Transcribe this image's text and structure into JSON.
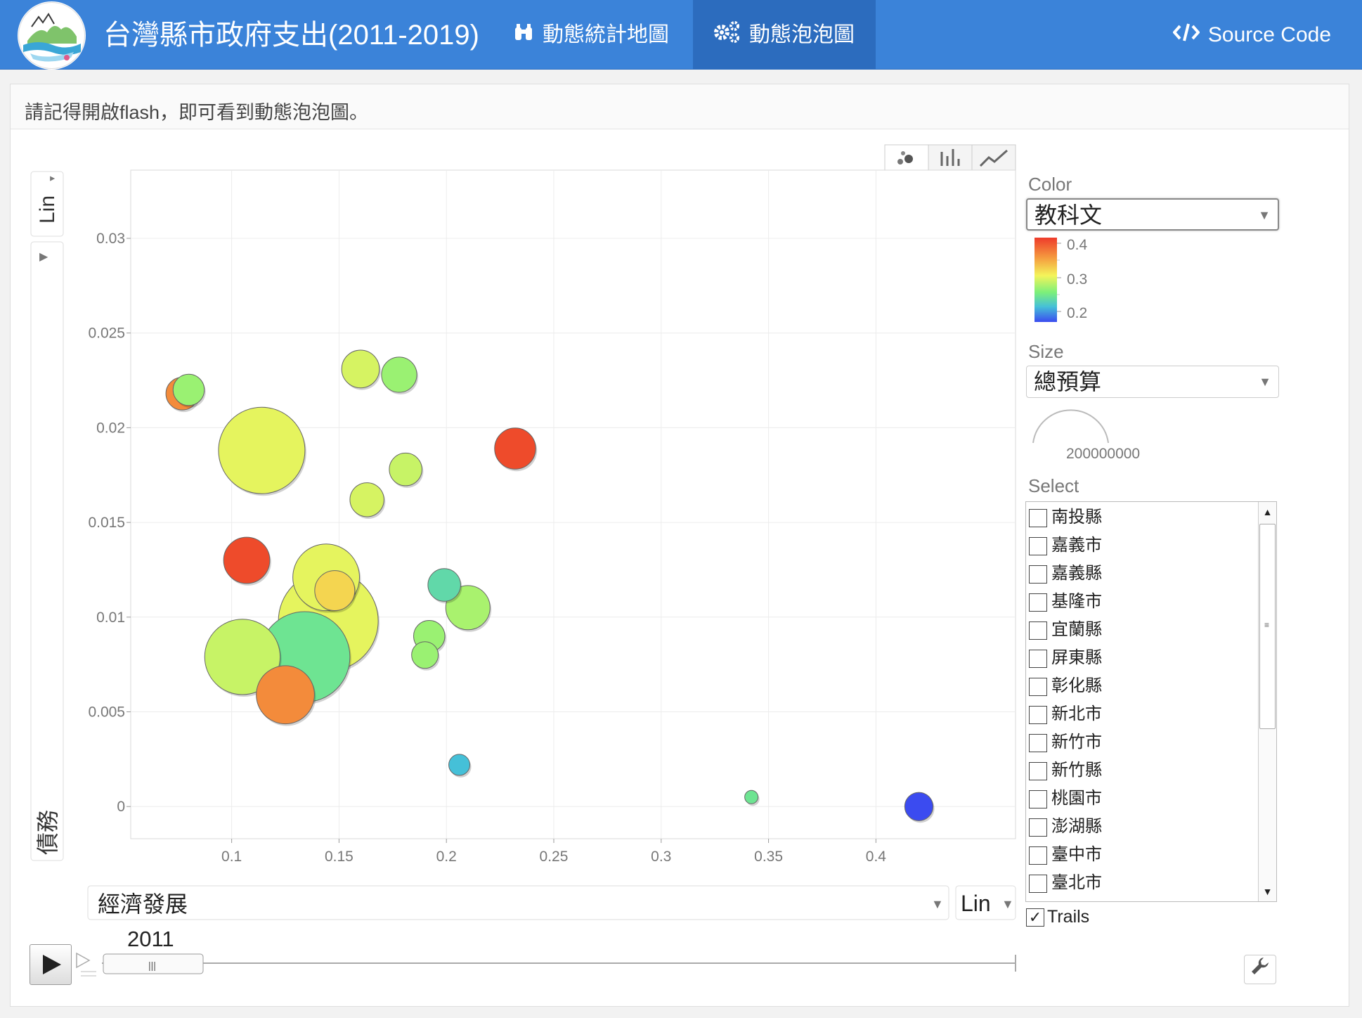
{
  "navbar": {
    "brand": "台灣縣市政府支出(2011-2019)",
    "nav_map": "動態統計地圖",
    "nav_bubble": "動態泡泡圖",
    "source_code": "Source Code",
    "colors": {
      "bar": "#3b83d9",
      "active": "#2c6cbe"
    },
    "icons": {
      "map": "binoculars-icon",
      "bubble": "gears-icon",
      "source": "code-icon"
    }
  },
  "notice": "請記得開啟flash，即可看到動態泡泡圖。",
  "controls": {
    "y_scale": "Lin",
    "x_scale": "Lin",
    "x_variable": "經濟發展",
    "color_label": "Color",
    "color_variable": "教科文",
    "color_legend_ticks": [
      "0.4",
      "0.3",
      "0.2"
    ],
    "size_label": "Size",
    "size_variable": "總預算",
    "size_legend_value": "200000000",
    "select_label": "Select",
    "select_items": [
      "南投縣",
      "嘉義市",
      "嘉義縣",
      "基隆市",
      "宜蘭縣",
      "屏東縣",
      "彰化縣",
      "新北市",
      "新竹市",
      "新竹縣",
      "桃園市",
      "澎湖縣",
      "臺中市",
      "臺北市"
    ],
    "trails_label": "Trails",
    "trails_checked": true,
    "year": "2011",
    "view_tabs": [
      "bubble-view",
      "bar-view",
      "line-view"
    ]
  },
  "chart_data": {
    "type": "scatter",
    "title": "",
    "xlabel": "經濟發展",
    "ylabel": "債務",
    "xlim": [
      0.053,
      0.465
    ],
    "ylim": [
      -0.0017,
      0.0336
    ],
    "xticks": [
      0.1,
      0.15,
      0.2,
      0.25,
      0.3,
      0.35,
      0.4
    ],
    "xtick_labels": [
      "0.1",
      "0.15",
      "0.2",
      "0.25",
      "0.3",
      "0.35",
      "0.4"
    ],
    "yticks": [
      0,
      0.005,
      0.01,
      0.015,
      0.02,
      0.025,
      0.03
    ],
    "ytick_labels": [
      "0",
      "0.005",
      "0.01",
      "0.015",
      "0.02",
      "0.025",
      "0.03"
    ],
    "grid": true,
    "year": 2011,
    "color_scale": {
      "min": 0.2,
      "max": 0.4,
      "stops": [
        "#3b4bf0",
        "#45c0d8",
        "#7cf07a",
        "#f4f45a",
        "#f5a040",
        "#ee4b2b"
      ]
    },
    "size_reference": 200000000,
    "points": [
      {
        "x": 0.077,
        "y": 0.0218,
        "size": 60000000,
        "color": 0.37
      },
      {
        "x": 0.08,
        "y": 0.022,
        "size": 55000000,
        "color": 0.29
      },
      {
        "x": 0.16,
        "y": 0.0231,
        "size": 80000000,
        "color": 0.31
      },
      {
        "x": 0.178,
        "y": 0.0228,
        "size": 70000000,
        "color": 0.29
      },
      {
        "x": 0.114,
        "y": 0.0188,
        "size": 420000000,
        "color": 0.315
      },
      {
        "x": 0.232,
        "y": 0.0189,
        "size": 95000000,
        "color": 0.4
      },
      {
        "x": 0.181,
        "y": 0.0178,
        "size": 60000000,
        "color": 0.305
      },
      {
        "x": 0.163,
        "y": 0.0162,
        "size": 65000000,
        "color": 0.31
      },
      {
        "x": 0.107,
        "y": 0.013,
        "size": 120000000,
        "color": 0.4
      },
      {
        "x": 0.144,
        "y": 0.0121,
        "size": 250000000,
        "color": 0.315
      },
      {
        "x": 0.148,
        "y": 0.0114,
        "size": 90000000,
        "color": 0.335
      },
      {
        "x": 0.199,
        "y": 0.0117,
        "size": 60000000,
        "color": 0.26
      },
      {
        "x": 0.21,
        "y": 0.0105,
        "size": 110000000,
        "color": 0.295
      },
      {
        "x": 0.145,
        "y": 0.0098,
        "size": 560000000,
        "color": 0.315
      },
      {
        "x": 0.192,
        "y": 0.009,
        "size": 55000000,
        "color": 0.29
      },
      {
        "x": 0.19,
        "y": 0.008,
        "size": 40000000,
        "color": 0.29
      },
      {
        "x": 0.105,
        "y": 0.0079,
        "size": 320000000,
        "color": 0.305
      },
      {
        "x": 0.134,
        "y": 0.0079,
        "size": 460000000,
        "color": 0.27
      },
      {
        "x": 0.125,
        "y": 0.0059,
        "size": 190000000,
        "color": 0.37
      },
      {
        "x": 0.206,
        "y": 0.0022,
        "size": 25000000,
        "color": 0.24
      },
      {
        "x": 0.342,
        "y": 0.0005,
        "size": 10000000,
        "color": 0.27
      },
      {
        "x": 0.42,
        "y": 0.0,
        "size": 45000000,
        "color": 0.2
      }
    ]
  }
}
